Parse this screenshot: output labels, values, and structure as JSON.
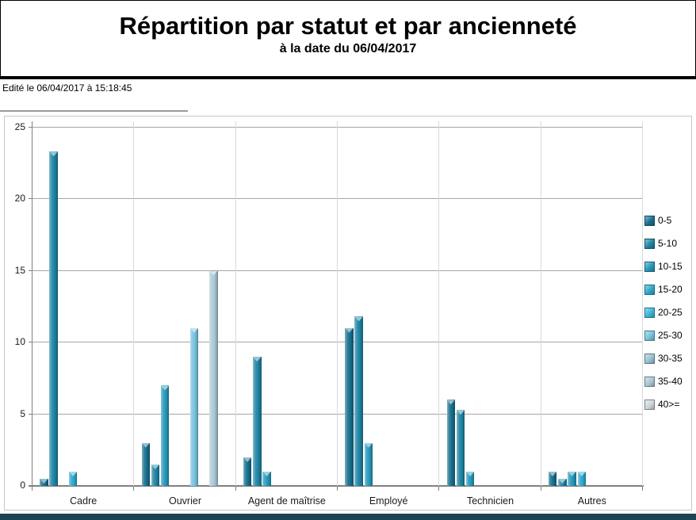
{
  "header": {
    "title": "Répartition par statut et par ancienneté",
    "subtitle": "à la date du 06/04/2017"
  },
  "edited_label": "Edité le 06/04/2017 à 15:18:45",
  "chart_data": {
    "type": "bar",
    "title": "Répartition par statut et par ancienneté",
    "subtitle": "à la date du 06/04/2017",
    "categories": [
      "Cadre",
      "Ouvrier",
      "Agent de maîtrise",
      "Employé",
      "Technicien",
      "Autres"
    ],
    "series": [
      {
        "name": "0-5",
        "color": "#176F8D",
        "values": [
          0.5,
          3,
          2,
          11,
          6,
          1
        ]
      },
      {
        "name": "5-10",
        "color": "#1E84A3",
        "values": [
          23.3,
          1.5,
          9,
          11.8,
          5.3,
          0.5
        ]
      },
      {
        "name": "10-15",
        "color": "#2598BB",
        "values": [
          0,
          7,
          1,
          3,
          1,
          1
        ]
      },
      {
        "name": "15-20",
        "color": "#2DA8CC",
        "values": [
          1,
          0,
          0,
          0,
          0,
          1
        ]
      },
      {
        "name": "20-25",
        "color": "#3CB4D8",
        "values": [
          0,
          0,
          0,
          0,
          0,
          0
        ]
      },
      {
        "name": "25-30",
        "color": "#76C3DD",
        "values": [
          0,
          11,
          0,
          0,
          0,
          0
        ]
      },
      {
        "name": "30-35",
        "color": "#96C2D3",
        "values": [
          0,
          0,
          0,
          0,
          0,
          0
        ]
      },
      {
        "name": "35-40",
        "color": "#A9C8D6",
        "values": [
          0,
          15,
          0,
          0,
          0,
          0
        ]
      },
      {
        "name": "40>=",
        "color": "#CED7DC",
        "values": [
          0,
          0,
          0,
          0,
          0,
          0
        ]
      }
    ],
    "ylim": [
      0,
      25
    ],
    "yticks": [
      0,
      5,
      10,
      15,
      20,
      25
    ],
    "xlabel": "",
    "ylabel": "",
    "grid": true,
    "legend_position": "right"
  },
  "colors": {
    "grid_horizontal": "#A6A6A6",
    "grid_vertical": "#D9D9D9",
    "axis": "#808080",
    "frame_border": "#C6C6C6",
    "footer_bar": "#204351",
    "header_border": "#000000"
  }
}
